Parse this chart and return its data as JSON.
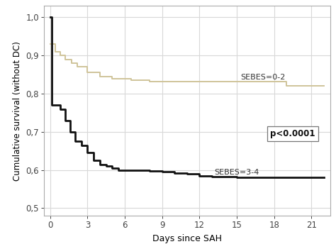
{
  "title": "",
  "xlabel": "Days since SAH",
  "ylabel": "Cumulative survival (without DC)",
  "xlim": [
    -0.5,
    22.5
  ],
  "ylim": [
    0.48,
    1.03
  ],
  "yticks": [
    0.5,
    0.6,
    0.7,
    0.8,
    0.9,
    1.0
  ],
  "ytick_labels": [
    "0,5",
    "0,6",
    "0,7",
    "0,8",
    "0,9",
    "1,0"
  ],
  "xticks": [
    0,
    3,
    6,
    9,
    12,
    15,
    18,
    21
  ],
  "background_color": "#ffffff",
  "grid_color": "#d8d8d8",
  "sebes02_color": "#cfc49a",
  "sebes34_color": "#111111",
  "sebes02_label": "SEBES=0-2",
  "sebes34_label": "SEBES=3-4",
  "pvalue_text": "p<0.0001",
  "sebes02_x": [
    0,
    0.4,
    0.8,
    1.2,
    1.7,
    2.2,
    3.0,
    4.0,
    5.0,
    6.5,
    8.0,
    9.0,
    12.0,
    15.0,
    18.0,
    19.0,
    22.0
  ],
  "sebes02_y": [
    0.93,
    0.91,
    0.9,
    0.89,
    0.88,
    0.87,
    0.855,
    0.845,
    0.84,
    0.835,
    0.832,
    0.832,
    0.832,
    0.832,
    0.832,
    0.82,
    0.82
  ],
  "sebes34_x": [
    0,
    0.15,
    0.5,
    0.8,
    1.2,
    1.6,
    2.0,
    2.5,
    3.0,
    3.5,
    4.0,
    4.5,
    5.0,
    5.5,
    6.0,
    6.5,
    7.0,
    8.0,
    9.0,
    10.0,
    11.0,
    12.0,
    13.0,
    14.0,
    15.0,
    22.0
  ],
  "sebes34_y": [
    1.0,
    0.77,
    0.77,
    0.76,
    0.73,
    0.7,
    0.675,
    0.665,
    0.645,
    0.625,
    0.615,
    0.61,
    0.605,
    0.6,
    0.6,
    0.6,
    0.6,
    0.598,
    0.595,
    0.592,
    0.59,
    0.585,
    0.583,
    0.582,
    0.58,
    0.58
  ]
}
